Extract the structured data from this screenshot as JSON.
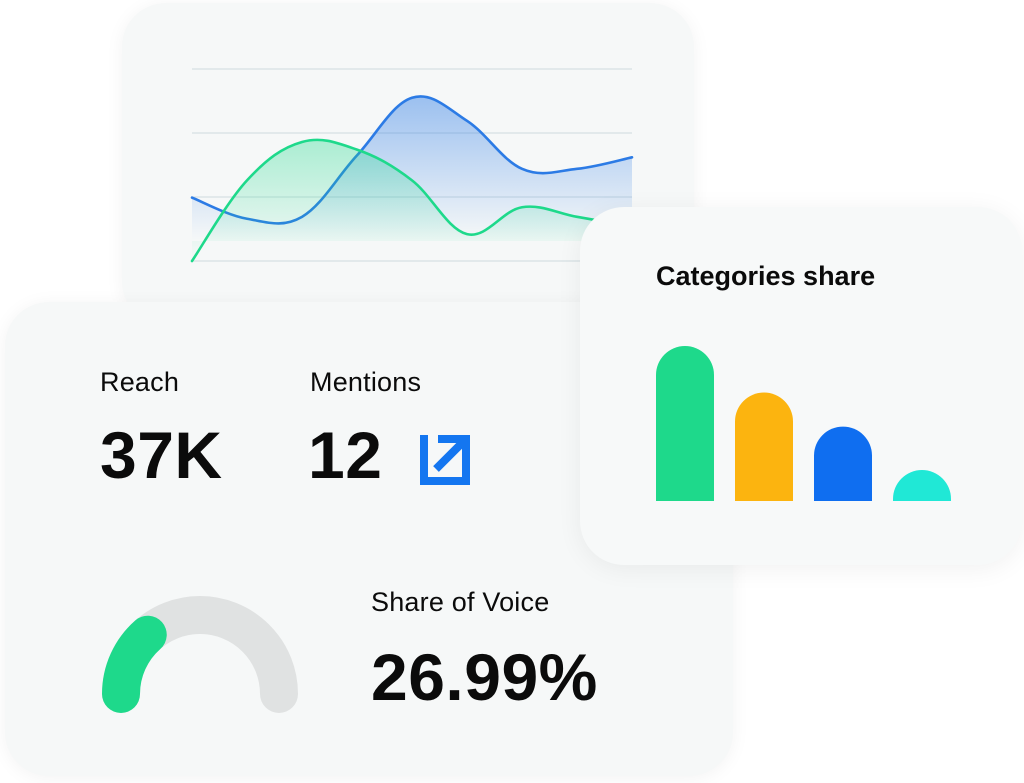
{
  "metrics": {
    "reach": {
      "label": "Reach",
      "value": "37K"
    },
    "mentions": {
      "label": "Mentions",
      "value": "12",
      "link_icon": "external-link-icon"
    },
    "share_of_voice": {
      "label": "Share of Voice",
      "value": "26.99%",
      "gauge_fraction": 0.27
    }
  },
  "categories": {
    "title": "Categories share",
    "bar_colors": [
      "#1ed98b",
      "#fcb40f",
      "#0f6ef0",
      "#20e8d6"
    ]
  },
  "colors": {
    "green": "#1ed98b",
    "blue": "#2c7be5",
    "gauge_track": "#e0e2e2",
    "link_blue": "#1476f0"
  },
  "chart_data": [
    {
      "type": "area",
      "title": "",
      "xlabel": "",
      "ylabel": "",
      "grid": true,
      "x": [
        0,
        1,
        2,
        3,
        4,
        5,
        6,
        7,
        8
      ],
      "ylim": [
        0,
        100
      ],
      "series": [
        {
          "values": [
            33,
            22,
            23,
            55,
            85,
            73,
            48,
            48,
            54
          ],
          "color": "#2c7be5"
        },
        {
          "values": [
            0,
            42,
            62,
            58,
            42,
            14,
            28,
            23,
            18
          ],
          "color": "#1ed98b"
        }
      ]
    },
    {
      "type": "bar",
      "title": "Categories share",
      "xlabel": "",
      "ylabel": "",
      "grid": false,
      "categories": [
        "",
        "",
        "",
        ""
      ],
      "values": [
        100,
        70,
        48,
        20
      ],
      "ylim": [
        0,
        100
      ]
    }
  ]
}
